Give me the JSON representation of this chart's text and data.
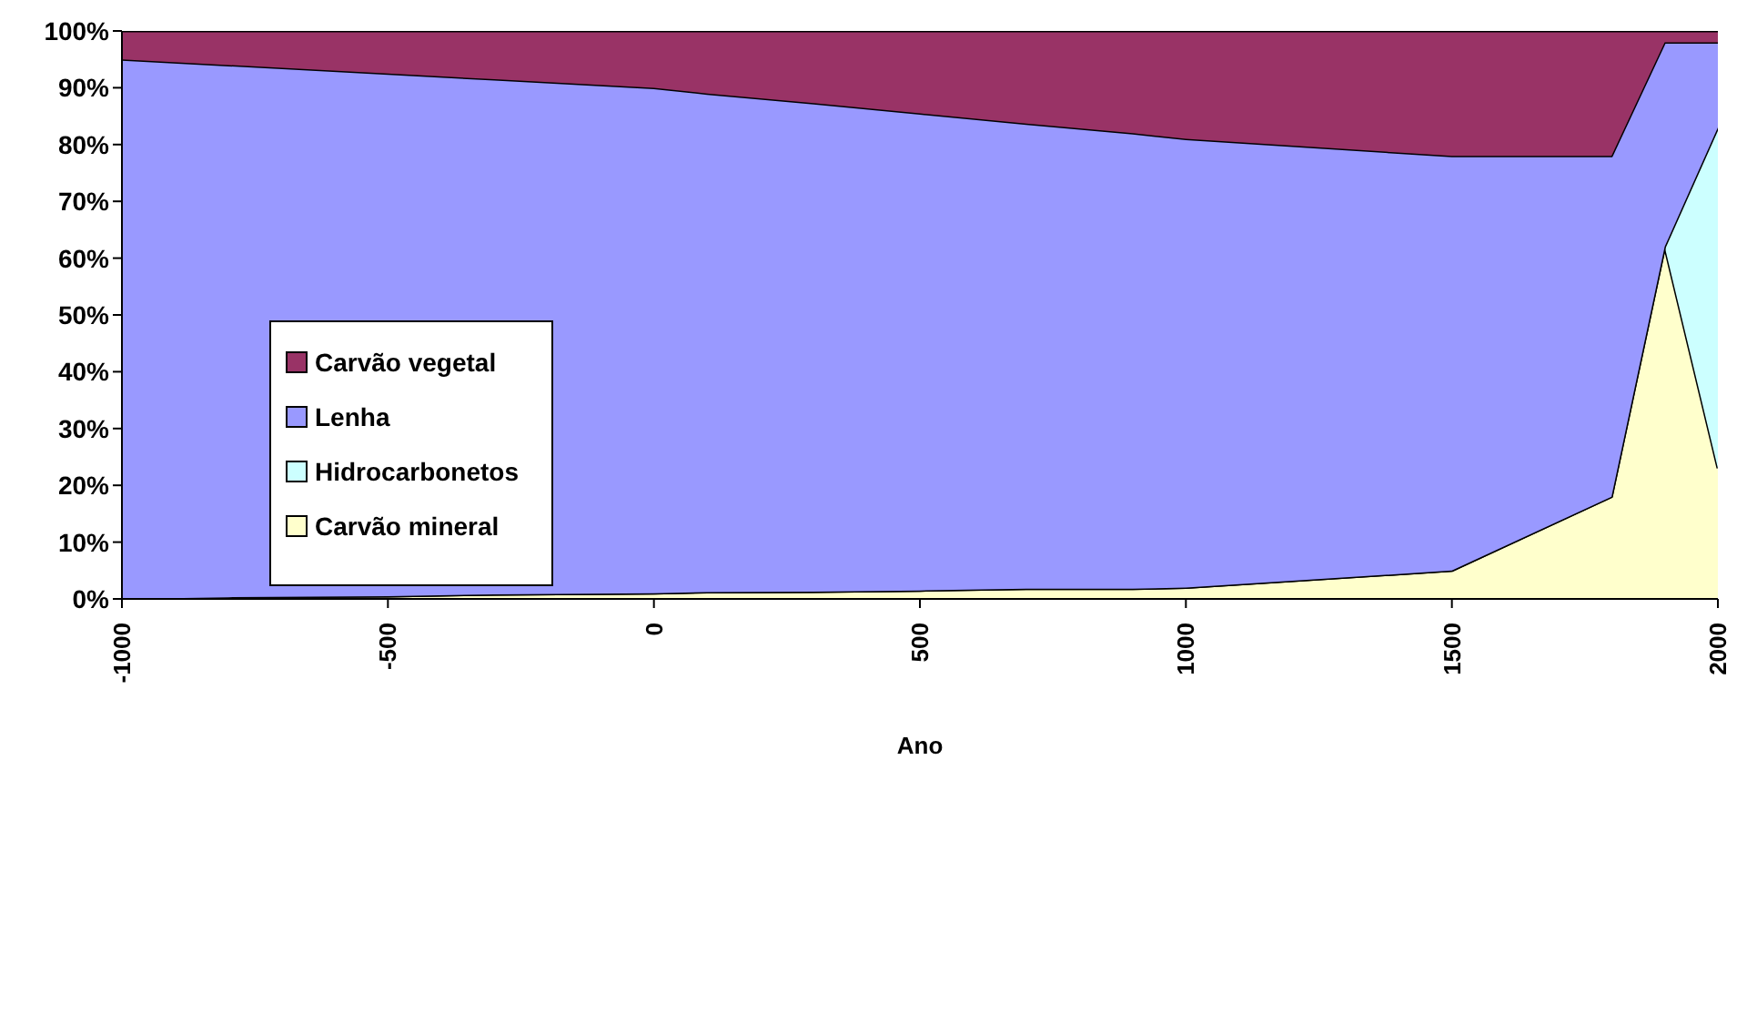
{
  "chart_data": {
    "type": "area",
    "stacked": true,
    "xlabel": "Ano",
    "x": [
      -1000,
      -800,
      -500,
      -300,
      0,
      100,
      300,
      500,
      700,
      900,
      1000,
      1500,
      1800,
      1900,
      2000
    ],
    "series": [
      {
        "name": "Carvão mineral",
        "color": "#ffffcc",
        "values": [
          0,
          0.3,
          0.5,
          0.8,
          1,
          1.2,
          1.3,
          1.5,
          1.8,
          1.8,
          2,
          5,
          18,
          62,
          23
        ]
      },
      {
        "name": "Hidrocarbonetos",
        "color": "#ccffff",
        "values": [
          0,
          0,
          0,
          0,
          0,
          0,
          0,
          0,
          0,
          0,
          0,
          0,
          0,
          0,
          60
        ]
      },
      {
        "name": "Lenha",
        "color": "#9999ff",
        "values": [
          95,
          93.7,
          92,
          90.7,
          89,
          87.8,
          86,
          84,
          81.9,
          80.2,
          79,
          73,
          60,
          36,
          15
        ]
      },
      {
        "name": "Carvão vegetal",
        "color": "#993366",
        "values": [
          5,
          6,
          7.5,
          8.5,
          10,
          11,
          12.7,
          14.5,
          16.3,
          18,
          19,
          22,
          22,
          2,
          2
        ]
      }
    ],
    "xlim": [
      -1000,
      2000
    ],
    "xticks": [
      -1000,
      -500,
      0,
      500,
      1000,
      1500,
      2000
    ],
    "ylim": [
      0,
      100
    ],
    "yticks": [
      {
        "value": 0,
        "label": "0%"
      },
      {
        "value": 10,
        "label": "10%"
      },
      {
        "value": 20,
        "label": "20%"
      },
      {
        "value": 30,
        "label": "30%"
      },
      {
        "value": 40,
        "label": "40%"
      },
      {
        "value": 50,
        "label": "50%"
      },
      {
        "value": 60,
        "label": "60%"
      },
      {
        "value": 70,
        "label": "70%"
      },
      {
        "value": 80,
        "label": "80%"
      },
      {
        "value": 90,
        "label": "90%"
      },
      {
        "value": 100,
        "label": "100%"
      }
    ],
    "grid": false,
    "legend": "left"
  }
}
